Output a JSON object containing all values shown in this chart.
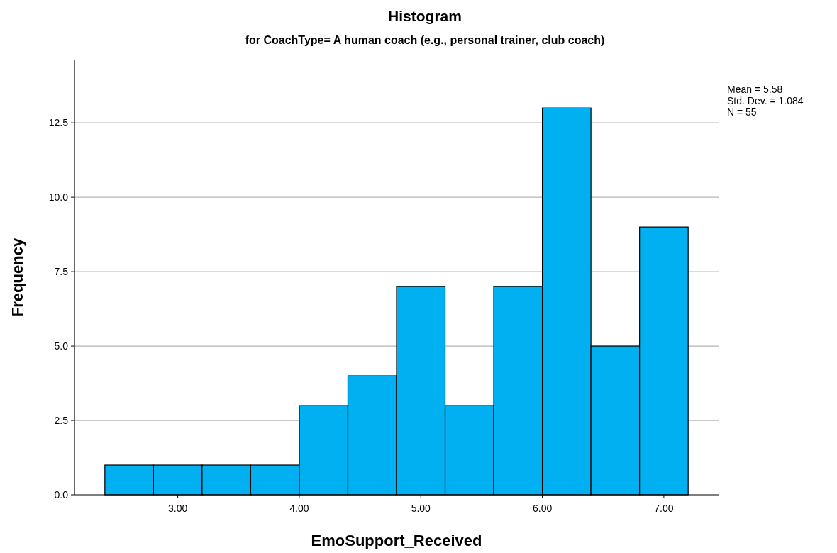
{
  "chart_data": {
    "type": "histogram",
    "title": "Histogram",
    "subtitle": "for CoachType= A human coach (e.g., personal trainer, club coach)",
    "xlabel": "EmoSupport_Received",
    "ylabel": "Frequency",
    "bins": [
      2.4,
      2.8,
      3.2,
      3.6,
      4.0,
      4.4,
      4.8,
      5.2,
      5.6,
      6.0,
      6.4,
      6.8,
      7.2
    ],
    "values": [
      1,
      1,
      1,
      1,
      3,
      4,
      7,
      3,
      7,
      13,
      5,
      9
    ],
    "color": "#00b0f0",
    "xlim": [
      2.15,
      7.45
    ],
    "xticks": [
      {
        "value": 3,
        "label": "3.00"
      },
      {
        "value": 4,
        "label": "4.00"
      },
      {
        "value": 5,
        "label": "5.00"
      },
      {
        "value": 6,
        "label": "6.00"
      },
      {
        "value": 7,
        "label": "7.00"
      }
    ],
    "ylim": [
      0,
      14.6
    ],
    "yticks": [
      {
        "value": 0,
        "label": "0.0"
      },
      {
        "value": 2.5,
        "label": "2.5"
      },
      {
        "value": 5,
        "label": "5.0"
      },
      {
        "value": 7.5,
        "label": "7.5"
      },
      {
        "value": 10,
        "label": "10.0"
      },
      {
        "value": 12.5,
        "label": "12.5"
      }
    ],
    "grid": "y",
    "annotations": [
      "Mean = 5.58",
      "Std. Dev. = 1.084",
      "N = 55"
    ]
  }
}
